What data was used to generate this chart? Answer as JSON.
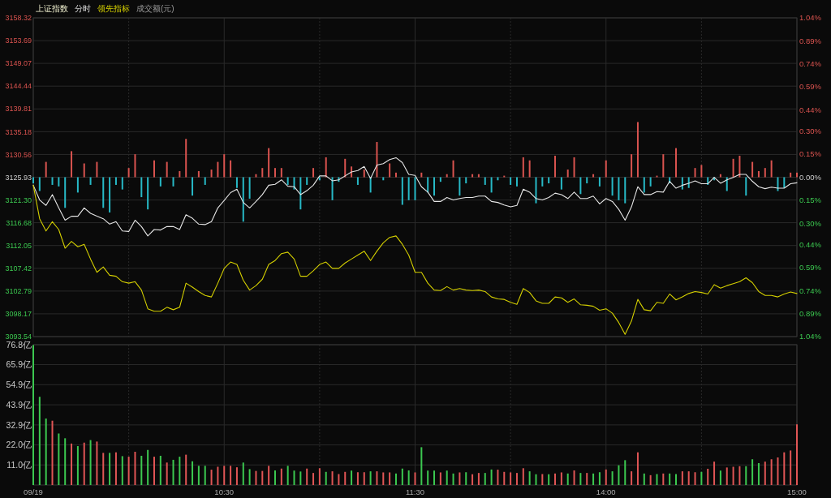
{
  "chart_data": [
    {
      "type": "line",
      "title": "上证指数",
      "legend": "top left",
      "grid": true,
      "tick_labels": "y",
      "annotations": [
        "成交额(元)"
      ],
      "ylim": [
        3093.54,
        3158.32
      ],
      "yticks": [
        {
          "value": 3093.54,
          "label": "3093.54"
        },
        {
          "value": 3098.17,
          "label": "3098.17"
        },
        {
          "value": 3102.79,
          "label": "3102.79"
        },
        {
          "value": 3107.42,
          "label": "3107.42"
        },
        {
          "value": 3112.05,
          "label": "3112.05"
        },
        {
          "value": 3116.68,
          "label": "3116.68"
        },
        {
          "value": 3121.3,
          "label": "3121.30"
        },
        {
          "value": 3125.93,
          "label": "3125.93"
        },
        {
          "value": 3130.56,
          "label": "3130.56"
        },
        {
          "value": 3135.18,
          "label": "3135.18"
        },
        {
          "value": 3139.81,
          "label": "3139.81"
        },
        {
          "value": 3144.44,
          "label": "3144.44"
        },
        {
          "value": 3149.07,
          "label": "3149.07"
        },
        {
          "value": 3153.69,
          "label": "3153.69"
        },
        {
          "value": 3158.32,
          "label": "3158.32"
        }
      ],
      "y2lim": [
        -1.04,
        1.04
      ],
      "y2ticks": [
        {
          "value": -1.04,
          "label": "1.04%"
        },
        {
          "value": -0.89,
          "label": "0.89%"
        },
        {
          "value": -0.74,
          "label": "0.74%"
        },
        {
          "value": -0.59,
          "label": "0.59%"
        },
        {
          "value": -0.44,
          "label": "0.44%"
        },
        {
          "value": -0.3,
          "label": "0.30%"
        },
        {
          "value": -0.15,
          "label": "0.15%"
        },
        {
          "value": 0,
          "label": "0.00%"
        },
        {
          "value": 0.15,
          "label": "0.15%"
        },
        {
          "value": 0.3,
          "label": "0.30%"
        },
        {
          "value": 0.44,
          "label": "0.44%"
        },
        {
          "value": 0.59,
          "label": "0.59%"
        },
        {
          "value": 0.74,
          "label": "0.74%"
        },
        {
          "value": 0.89,
          "label": "0.89%"
        },
        {
          "value": 1.04,
          "label": "1.04%"
        }
      ],
      "series": [
        {
          "type": "bar",
          "axis": "y2",
          "values": [
            -0.04,
            -0.09,
            0.1,
            -0.05,
            -0.06,
            -0.2,
            0.17,
            -0.1,
            0.09,
            -0.05,
            0.1,
            -0.2,
            -0.23,
            -0.05,
            -0.08,
            0.06,
            0.15,
            -0.13,
            -0.21,
            0.11,
            -0.06,
            0.1,
            -0.06,
            0.04,
            0.25,
            -0.12,
            0.04,
            -0.05,
            0.05,
            0.1,
            0.15,
            0.11,
            -0.07,
            -0.29,
            -0.14,
            0.02,
            0.06,
            0.19,
            0.06,
            0.06,
            -0.05,
            -0.08,
            -0.21,
            -0.05,
            0.06,
            -0.02,
            0.13,
            -0.15,
            -0.03,
            0.12,
            0.07,
            -0.05,
            0.05,
            -0.1,
            0.23,
            -0.02,
            0.09,
            0.03,
            -0.18,
            -0.15,
            -0.15,
            0.03,
            -0.1,
            -0.12,
            -0.03,
            0.02,
            0.11,
            -0.12,
            -0.04,
            0.02,
            0.02,
            -0.05,
            -0.1,
            -0.02,
            0.01,
            -0.05,
            -0.06,
            0.13,
            0.11,
            -0.17,
            -0.06,
            -0.04,
            0.14,
            -0.08,
            0.05,
            0.13,
            -0.11,
            -0.04,
            0.02,
            -0.06,
            0.11,
            -0.12,
            -0.15,
            -0.17,
            0.15,
            0.36,
            -0.1,
            -0.06,
            0.01,
            0.15,
            -0.04,
            0.19,
            -0.08,
            -0.07,
            0.06,
            0.08,
            -0.05,
            -0.02,
            0.02,
            -0.09,
            0.12,
            0.14,
            -0.12,
            0.1,
            0.04,
            0.06,
            0.11,
            -0.09,
            -0.07,
            0.03,
            0.03
          ],
          "colors": [
            "#27b9c6",
            "#27b9c6",
            "#d9534f",
            "#27b9c6",
            "#27b9c6",
            "#27b9c6",
            "#d9534f",
            "#27b9c6",
            "#d9534f",
            "#27b9c6",
            "#d9534f",
            "#27b9c6",
            "#27b9c6",
            "#27b9c6",
            "#27b9c6",
            "#d9534f",
            "#d9534f",
            "#27b9c6",
            "#27b9c6",
            "#d9534f",
            "#27b9c6",
            "#d9534f",
            "#27b9c6",
            "#d9534f",
            "#d9534f",
            "#27b9c6",
            "#d9534f",
            "#27b9c6",
            "#d9534f",
            "#d9534f",
            "#d9534f",
            "#d9534f",
            "#27b9c6",
            "#27b9c6",
            "#27b9c6",
            "#d9534f",
            "#d9534f",
            "#d9534f",
            "#d9534f",
            "#d9534f",
            "#27b9c6",
            "#27b9c6",
            "#27b9c6",
            "#27b9c6",
            "#d9534f",
            "#27b9c6",
            "#d9534f",
            "#27b9c6",
            "#27b9c6",
            "#d9534f",
            "#d9534f",
            "#27b9c6",
            "#d9534f",
            "#27b9c6",
            "#d9534f",
            "#27b9c6",
            "#d9534f",
            "#d9534f",
            "#27b9c6",
            "#27b9c6",
            "#27b9c6",
            "#d9534f",
            "#27b9c6",
            "#27b9c6",
            "#27b9c6",
            "#d9534f",
            "#d9534f",
            "#27b9c6",
            "#27b9c6",
            "#d9534f",
            "#d9534f",
            "#27b9c6",
            "#27b9c6",
            "#27b9c6",
            "#d9534f",
            "#27b9c6",
            "#27b9c6",
            "#d9534f",
            "#d9534f",
            "#27b9c6",
            "#27b9c6",
            "#27b9c6",
            "#d9534f",
            "#27b9c6",
            "#d9534f",
            "#d9534f",
            "#27b9c6",
            "#27b9c6",
            "#d9534f",
            "#27b9c6",
            "#d9534f",
            "#27b9c6",
            "#27b9c6",
            "#27b9c6",
            "#d9534f",
            "#d9534f",
            "#27b9c6",
            "#27b9c6",
            "#d9534f",
            "#d9534f",
            "#27b9c6",
            "#d9534f",
            "#27b9c6",
            "#27b9c6",
            "#d9534f",
            "#d9534f",
            "#27b9c6",
            "#27b9c6",
            "#d9534f",
            "#27b9c6",
            "#d9534f",
            "#d9534f",
            "#27b9c6",
            "#d9534f",
            "#d9534f",
            "#d9534f",
            "#d9534f",
            "#27b9c6",
            "#27b9c6",
            "#d9534f",
            "#d9534f"
          ]
        },
        {
          "name": "分时",
          "color": "#e6e6e6",
          "values": [
            3124.3,
            3121.3,
            3120.2,
            3122.4,
            3119.7,
            3117.2,
            3118.0,
            3118.0,
            3119.7,
            3118.6,
            3118.0,
            3117.5,
            3116.4,
            3116.9,
            3115.0,
            3114.9,
            3117.2,
            3115.9,
            3114.0,
            3115.3,
            3115.2,
            3115.9,
            3115.9,
            3115.3,
            3118.3,
            3117.6,
            3116.4,
            3116.3,
            3116.9,
            3119.7,
            3121.2,
            3122.8,
            3123.5,
            3120.8,
            3119.7,
            3121.0,
            3122.4,
            3124.3,
            3124.5,
            3125.4,
            3124.1,
            3124.0,
            3122.4,
            3123.2,
            3124.3,
            3126.2,
            3126.2,
            3125.2,
            3125.4,
            3126.2,
            3127.0,
            3127.3,
            3128.1,
            3125.7,
            3128.4,
            3128.7,
            3129.5,
            3129.9,
            3128.9,
            3126.5,
            3126.3,
            3124.0,
            3122.9,
            3121.0,
            3121.0,
            3121.8,
            3121.3,
            3121.6,
            3121.8,
            3121.8,
            3122.1,
            3122.1,
            3121.0,
            3120.8,
            3120.3,
            3119.9,
            3120.2,
            3123.5,
            3122.9,
            3121.6,
            3121.3,
            3121.8,
            3122.7,
            3122.4,
            3121.6,
            3122.9,
            3121.6,
            3121.6,
            3122.1,
            3120.5,
            3121.6,
            3121.0,
            3119.4,
            3117.2,
            3119.9,
            3124.0,
            3122.4,
            3122.4,
            3123.0,
            3122.9,
            3125.1,
            3123.7,
            3124.3,
            3124.7,
            3125.2,
            3124.6,
            3124.6,
            3125.9,
            3124.7,
            3125.4,
            3125.9,
            3126.5,
            3126.5,
            3125.1,
            3124.0,
            3123.6,
            3123.9,
            3123.7,
            3123.7,
            3124.6,
            3124.8
          ]
        },
        {
          "name": "领先指标",
          "color": "#d4cf00",
          "values": [
            3124.3,
            3117.5,
            3115.0,
            3116.9,
            3115.3,
            3111.5,
            3112.9,
            3111.8,
            3112.3,
            3109.3,
            3106.6,
            3107.7,
            3106.0,
            3105.8,
            3104.7,
            3104.4,
            3104.7,
            3103.0,
            3099.2,
            3098.7,
            3098.7,
            3099.5,
            3099.0,
            3099.5,
            3104.4,
            3103.6,
            3102.7,
            3101.9,
            3101.6,
            3104.4,
            3107.4,
            3108.7,
            3108.2,
            3105.0,
            3103.0,
            3103.9,
            3105.2,
            3108.2,
            3109.0,
            3110.4,
            3110.7,
            3109.3,
            3105.8,
            3105.8,
            3106.9,
            3108.2,
            3108.7,
            3107.4,
            3107.4,
            3108.5,
            3109.3,
            3110.1,
            3110.9,
            3109.0,
            3110.9,
            3112.6,
            3113.7,
            3114.0,
            3112.3,
            3110.1,
            3106.6,
            3106.6,
            3104.4,
            3103.0,
            3102.9,
            3103.7,
            3103.0,
            3103.3,
            3103.0,
            3102.9,
            3103.0,
            3102.7,
            3101.6,
            3101.2,
            3101.1,
            3100.5,
            3100.1,
            3103.3,
            3102.5,
            3100.8,
            3100.3,
            3100.3,
            3101.6,
            3101.4,
            3100.5,
            3101.2,
            3100.0,
            3099.9,
            3099.7,
            3098.9,
            3099.2,
            3098.3,
            3096.4,
            3094.0,
            3096.7,
            3101.1,
            3099.0,
            3098.8,
            3100.5,
            3100.3,
            3102.2,
            3101.0,
            3101.6,
            3102.3,
            3102.7,
            3102.5,
            3102.2,
            3104.1,
            3103.4,
            3103.9,
            3104.3,
            3104.7,
            3105.5,
            3104.5,
            3102.7,
            3101.9,
            3101.9,
            3101.6,
            3102.2,
            3102.6,
            3102.3
          ]
        }
      ]
    },
    {
      "type": "bar",
      "grid": true,
      "categories": [
        "09/19",
        null,
        null,
        null,
        null,
        null,
        null,
        null,
        null,
        null,
        null,
        null,
        null,
        null,
        null,
        null,
        null,
        null,
        null,
        null,
        null,
        null,
        null,
        null,
        null,
        null,
        null,
        null,
        null,
        null,
        "10:30",
        null,
        null,
        null,
        null,
        null,
        null,
        null,
        null,
        null,
        null,
        null,
        null,
        null,
        null,
        null,
        null,
        null,
        null,
        null,
        null,
        null,
        null,
        null,
        null,
        null,
        null,
        null,
        null,
        null,
        "11:30",
        null,
        null,
        null,
        null,
        null,
        null,
        null,
        null,
        null,
        null,
        null,
        null,
        null,
        null,
        null,
        null,
        null,
        null,
        null,
        null,
        null,
        null,
        null,
        null,
        null,
        null,
        null,
        null,
        null,
        "14:00",
        null,
        null,
        null,
        null,
        null,
        null,
        null,
        null,
        null,
        null,
        null,
        null,
        null,
        null,
        null,
        null,
        null,
        null,
        null,
        null,
        null,
        null,
        null,
        null,
        null,
        null,
        null,
        null,
        null,
        "15:00"
      ],
      "ylim": [
        0,
        76.8
      ],
      "yticks": [
        {
          "value": 11.0,
          "label": "11.0亿"
        },
        {
          "value": 22.0,
          "label": "22.0亿"
        },
        {
          "value": 32.9,
          "label": "32.9亿"
        },
        {
          "value": 43.9,
          "label": "43.9亿"
        },
        {
          "value": 54.9,
          "label": "54.9亿"
        },
        {
          "value": 65.9,
          "label": "65.9亿"
        },
        {
          "value": 76.8,
          "label": "76.8亿"
        }
      ],
      "values": [
        76.6,
        48.3,
        36.4,
        35.2,
        28.2,
        25.6,
        22.7,
        21.3,
        23.2,
        24.6,
        23.8,
        17.6,
        17.6,
        17.9,
        15.8,
        15.5,
        18.2,
        16.0,
        19.2,
        15.5,
        16.0,
        12.3,
        13.8,
        15.5,
        16.6,
        13.0,
        10.5,
        10.5,
        8.4,
        10.0,
        10.5,
        10.5,
        9.7,
        12.3,
        8.7,
        7.7,
        7.7,
        10.5,
        8.0,
        9.0,
        10.5,
        7.9,
        7.4,
        9.0,
        6.6,
        9.2,
        7.2,
        7.5,
        6.0,
        7.2,
        7.9,
        7.0,
        7.0,
        7.5,
        7.5,
        6.9,
        6.9,
        6.3,
        9.0,
        8.0,
        6.9,
        20.7,
        7.9,
        7.9,
        6.9,
        7.9,
        6.3,
        6.9,
        7.0,
        5.9,
        6.6,
        6.6,
        8.5,
        8.4,
        7.2,
        6.9,
        6.6,
        9.2,
        7.5,
        5.9,
        6.0,
        5.9,
        6.3,
        6.9,
        6.3,
        8.0,
        6.6,
        6.6,
        6.3,
        7.0,
        8.5,
        7.5,
        10.8,
        13.6,
        7.5,
        17.9,
        6.3,
        5.4,
        6.0,
        6.3,
        6.3,
        6.0,
        7.5,
        7.5,
        7.0,
        7.2,
        8.9,
        12.8,
        7.9,
        9.6,
        10.0,
        10.3,
        10.3,
        14.1,
        12.0,
        12.8,
        14.1,
        15.1,
        17.9,
        18.9,
        33.2
      ],
      "colors": [
        "#3cc850",
        "#3cc850",
        "#3cc850",
        "#e05555",
        "#3cc850",
        "#3cc850",
        "#e05555",
        "#3cc850",
        "#e05555",
        "#3cc850",
        "#e05555",
        "#e05555",
        "#3cc850",
        "#e05555",
        "#3cc850",
        "#e05555",
        "#e05555",
        "#3cc850",
        "#3cc850",
        "#e05555",
        "#3cc850",
        "#e05555",
        "#3cc850",
        "#3cc850",
        "#e05555",
        "#3cc850",
        "#3cc850",
        "#3cc850",
        "#e05555",
        "#e05555",
        "#e05555",
        "#e05555",
        "#e05555",
        "#3cc850",
        "#3cc850",
        "#e05555",
        "#e05555",
        "#e05555",
        "#3cc850",
        "#e05555",
        "#3cc850",
        "#3cc850",
        "#3cc850",
        "#e05555",
        "#e05555",
        "#e05555",
        "#3cc850",
        "#e05555",
        "#e05555",
        "#e05555",
        "#3cc850",
        "#e05555",
        "#e05555",
        "#3cc850",
        "#e05555",
        "#e05555",
        "#e05555",
        "#3cc850",
        "#3cc850",
        "#3cc850",
        "#e05555",
        "#3cc850",
        "#3cc850",
        "#3cc850",
        "#e05555",
        "#3cc850",
        "#3cc850",
        "#e05555",
        "#3cc850",
        "#e05555",
        "#e05555",
        "#3cc850",
        "#3cc850",
        "#e05555",
        "#e05555",
        "#e05555",
        "#e05555",
        "#e05555",
        "#3cc850",
        "#3cc850",
        "#e05555",
        "#3cc850",
        "#e05555",
        "#e05555",
        "#3cc850",
        "#e05555",
        "#3cc850",
        "#e05555",
        "#3cc850",
        "#3cc850",
        "#e05555",
        "#3cc850",
        "#3cc850",
        "#3cc850",
        "#e05555",
        "#e05555",
        "#3cc850",
        "#e05555",
        "#3cc850",
        "#e05555",
        "#3cc850",
        "#3cc850",
        "#e05555",
        "#e05555",
        "#e05555",
        "#3cc850",
        "#e05555",
        "#e05555",
        "#3cc850",
        "#e05555",
        "#e05555",
        "#e05555",
        "#3cc850",
        "#3cc850",
        "#3cc850",
        "#e05555",
        "#e05555",
        "#e05555",
        "#e05555",
        "#e05555",
        "#e05555"
      ]
    }
  ]
}
